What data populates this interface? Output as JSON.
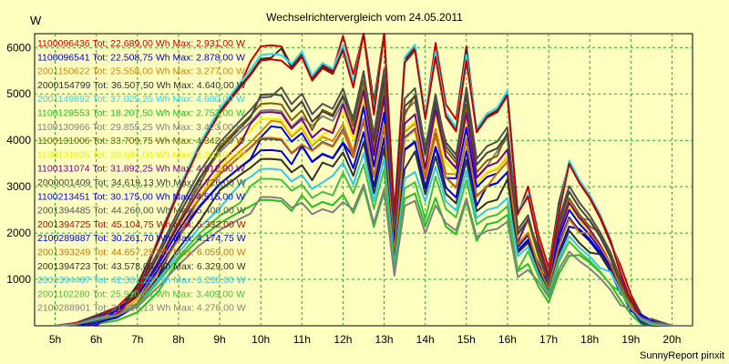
{
  "chart_data": {
    "type": "line",
    "title": "Wechselrichtervergleich vom 24.05.2011",
    "ylabel": "W",
    "xlabel": "",
    "footer": "SunnyReport pinxit",
    "ylim": [
      0,
      6300
    ],
    "y_ticks": [
      1000,
      2000,
      3000,
      4000,
      5000,
      6000
    ],
    "y_tick_labels": [
      "1000",
      "2000",
      "3000",
      "4000",
      "5000",
      "6000"
    ],
    "xlim": [
      4.5,
      20.5
    ],
    "x_ticks": [
      5,
      6,
      7,
      8,
      9,
      10,
      11,
      12,
      13,
      14,
      15,
      16,
      17,
      18,
      19,
      20
    ],
    "x_tick_labels": [
      "5h",
      "6h",
      "7h",
      "8h",
      "9h",
      "10h",
      "11h",
      "12h",
      "13h",
      "14h",
      "15h",
      "16h",
      "17h",
      "18h",
      "19h",
      "20h"
    ],
    "grid": true,
    "legend_position": "top-left",
    "x": [
      5.0,
      5.5,
      6.0,
      6.5,
      7.0,
      7.5,
      8.0,
      8.5,
      9.0,
      9.5,
      9.75,
      10.0,
      10.25,
      10.5,
      10.75,
      11.0,
      11.25,
      11.5,
      11.75,
      12.0,
      12.25,
      12.5,
      12.75,
      13.0,
      13.25,
      13.5,
      13.75,
      14.0,
      14.25,
      14.5,
      14.75,
      15.0,
      15.25,
      15.5,
      15.75,
      16.0,
      16.25,
      16.5,
      16.75,
      17.0,
      17.25,
      17.5,
      17.75,
      18.0,
      18.25,
      18.5,
      18.75,
      19.0,
      19.25,
      19.5,
      20.0,
      20.5
    ],
    "series": [
      {
        "name": "1100096436 Tot: 22.689,00 Wh Max: 2.931,00 W",
        "color": "#d00000",
        "scale": 1.0
      },
      {
        "name": "1100096541 Tot: 22.508,75 Wh Max: 2.878,00 W",
        "color": "#0000c8",
        "scale": 0.66
      },
      {
        "name": "2001150622 Tot: 25.558,00 Wh Max: 3.277,00 W",
        "color": "#e08000",
        "scale": 0.72
      },
      {
        "name": "2000154799 Tot: 36.507,50 Wh Max: 4.640,00 W",
        "color": "#303030",
        "scale": 0.98
      },
      {
        "name": "2001149892 Tot: 37.025,25 Wh Max: 4.680,00 W",
        "color": "#20e0f0",
        "scale": 0.99
      },
      {
        "name": "1100129553 Tot: 18.207,50 Wh Max: 2.753,00 W",
        "color": "#20c020",
        "scale": 0.46
      },
      {
        "name": "1100130966 Tot: 29.855,25 Wh Max: 3.423,00 W",
        "color": "#808080",
        "scale": 0.78
      },
      {
        "name": "1100131006 Tot: 33.709,75 Wh Max: 4.342,00 W",
        "color": "#806000",
        "scale": 0.8
      },
      {
        "name": "1100131025 Tot: 30.694,00 Wh Max: 3.333,00 W",
        "color": "#f0f000",
        "scale": 0.74
      },
      {
        "name": "1100131074 Tot: 31.892,25 Wh Max: 4.612,00 W",
        "color": "#800080",
        "scale": 0.76
      },
      {
        "name": "2000001409 Tot: 34.619,13 Wh Max: 4.726,00 W",
        "color": "#404040",
        "scale": 0.82
      },
      {
        "name": "1100213451 Tot: 30.175,00 Wh Max: 4.515,00 W",
        "color": "#0000ff",
        "scale": 0.7
      },
      {
        "name": "2001394485 Tot: 44.260,00 Wh Max: 5.400,00 W",
        "color": "#505050",
        "scale": 0.84
      },
      {
        "name": "2001394725 Tot: 45.104,75 Wh Max: 5.332,00 W",
        "color": "#c00000",
        "scale": 0.97
      },
      {
        "name": "2100289887 Tot: 30.261,70 Wh Max: 4.174,75 W",
        "color": "#0000e0",
        "scale": 0.64
      },
      {
        "name": "2001393249 Tot: 44.657,25 Wh Max: 6.059,00 W",
        "color": "#d07000",
        "scale": 0.68
      },
      {
        "name": "2001394723 Tot: 43.578,00 Wh Max: 6.329,00 W",
        "color": "#303030",
        "scale": 0.6
      },
      {
        "name": "2001394487 Tot: 42.381,25 Wh Max: 6.230,00 W",
        "color": "#30c8f0",
        "scale": 0.56
      },
      {
        "name": "2001102280 Tot: 25.910,00 Wh Max: 3.409,00 W",
        "color": "#40c040",
        "scale": 0.52
      },
      {
        "name": "2100288901 Tot: 31.616,13 Wh Max: 4.276,00 W",
        "color": "#808080",
        "scale": 0.45
      }
    ],
    "profile": [
      0,
      60,
      150,
      350,
      800,
      1800,
      2900,
      3900,
      4700,
      5300,
      5600,
      5950,
      6000,
      6000,
      5600,
      5900,
      5400,
      5700,
      5600,
      6150,
      5350,
      6600,
      4800,
      6500,
      2400,
      5800,
      6100,
      4600,
      6000,
      4700,
      4400,
      6000,
      4200,
      4550,
      4700,
      5100,
      2500,
      2900,
      1900,
      1200,
      2600,
      3500,
      3100,
      2800,
      2400,
      1900,
      1200,
      600,
      200,
      50,
      0,
      0
    ]
  }
}
